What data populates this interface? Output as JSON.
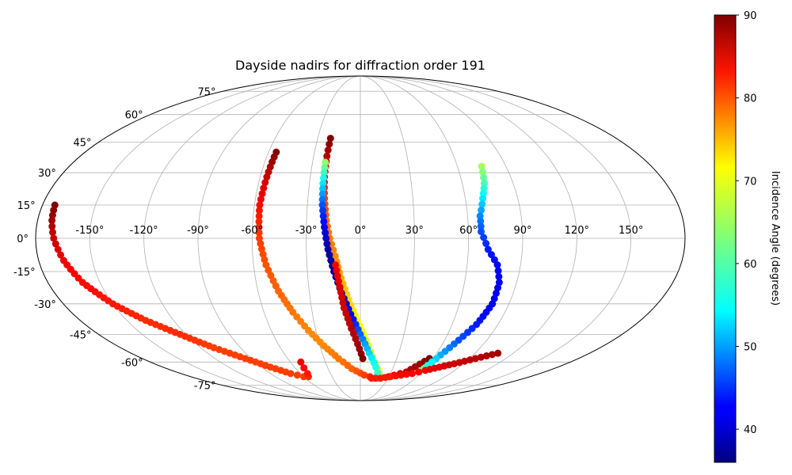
{
  "chart_data": {
    "type": "scatter",
    "projection": "mollweide",
    "title": "Dayside nadirs for diffraction order 191",
    "grid": true,
    "lon_ticks": [
      "-150°",
      "-120°",
      "-90°",
      "-60°",
      "-30°",
      "0°",
      "30°",
      "60°",
      "90°",
      "120°",
      "150°"
    ],
    "lon_tick_values": [
      -150,
      -120,
      -90,
      -60,
      -30,
      0,
      30,
      60,
      90,
      120,
      150
    ],
    "lat_ticks": [
      "75°",
      "60°",
      "45°",
      "30°",
      "15°",
      "0°",
      "-15°",
      "-30°",
      "-45°",
      "-60°",
      "-75°"
    ],
    "lat_tick_values": [
      75,
      60,
      45,
      30,
      15,
      0,
      -15,
      -30,
      -45,
      -60,
      -75
    ],
    "colorbar": {
      "label": "Incidence Angle (degrees)",
      "colormap": "jet",
      "range": [
        36,
        90
      ],
      "ticks": [
        "40",
        "50",
        "60",
        "70",
        "80",
        "90"
      ],
      "tick_values": [
        40,
        50,
        60,
        70,
        80,
        90
      ]
    },
    "series": [
      {
        "lon": [
          -173,
          -172,
          -170,
          -166,
          -160,
          -150,
          -138,
          -124,
          -110,
          -95,
          -82,
          -70,
          -60,
          -55,
          -53,
          -51
        ],
        "lat": [
          15,
          8,
          0,
          -10,
          -20,
          -30,
          -38,
          -45,
          -52,
          -58,
          -63,
          -67,
          -69,
          -69,
          -67,
          -60
        ],
        "incidence": [
          90,
          88,
          86,
          84,
          83,
          82,
          81,
          81,
          80,
          80,
          80,
          80,
          80,
          81,
          82,
          84
        ]
      },
      {
        "lon": [
          -55,
          -56,
          -57,
          -56,
          -53,
          -48,
          -42,
          -35,
          -27,
          -18,
          -8,
          4,
          16,
          30,
          45,
          57
        ],
        "lat": [
          40,
          28,
          15,
          0,
          -12,
          -24,
          -34,
          -43,
          -51,
          -58,
          -64,
          -68,
          -70,
          -69,
          -66,
          -58
        ],
        "incidence": [
          90,
          86,
          83,
          80,
          79,
          78,
          77,
          76,
          76,
          77,
          78,
          80,
          82,
          84,
          87,
          90
        ]
      },
      {
        "lon": [
          -21,
          -21.5,
          -21.5,
          -20.5,
          -19,
          -17,
          -14,
          -11,
          -7,
          -2,
          4,
          10,
          16,
          22
        ],
        "lat": [
          47,
          38,
          28,
          18,
          8,
          0,
          -8,
          -18,
          -28,
          -38,
          -48,
          -57,
          -64,
          -70
        ],
        "incidence": [
          90,
          87,
          84,
          80,
          78,
          77,
          76,
          74,
          72,
          70,
          69,
          68,
          67,
          66
        ]
      },
      {
        "lon": [
          -22,
          -22,
          -21.5,
          -20,
          -18,
          -15,
          -11,
          -6,
          0,
          7,
          14,
          20
        ],
        "lat": [
          35,
          25,
          15,
          5,
          -5,
          -15,
          -25,
          -35,
          -45,
          -55,
          -63,
          -70
        ],
        "incidence": [
          64,
          55,
          47,
          42,
          38,
          37,
          38,
          42,
          48,
          54,
          58,
          60
        ]
      },
      {
        "lon": [
          -14,
          -12,
          -10,
          -6,
          -2,
          2
        ],
        "lat": [
          -12,
          -22,
          -32,
          -42,
          -50,
          -58
        ],
        "incidence": [
          84,
          85,
          86,
          87,
          88,
          90
        ]
      },
      {
        "lon": [
          75,
          73,
          70,
          67,
          67,
          71,
          77,
          80,
          80,
          76,
          70,
          64,
          60,
          58
        ],
        "lat": [
          33,
          25,
          18,
          10,
          3,
          -5,
          -12,
          -20,
          -30,
          -40,
          -48,
          -56,
          -62,
          -66
        ],
        "incidence": [
          65,
          60,
          55,
          50,
          47,
          44,
          43,
          42,
          42,
          44,
          47,
          52,
          58,
          64
        ]
      },
      {
        "lon": [
          12,
          22,
          32,
          42,
          52,
          62,
          72,
          82,
          95,
          108
        ],
        "lat": [
          -70,
          -70,
          -69,
          -68,
          -67,
          -65,
          -63,
          -61,
          -58,
          -55
        ],
        "incidence": [
          82,
          82,
          82,
          83,
          83,
          84,
          85,
          86,
          87,
          88
        ]
      }
    ]
  }
}
